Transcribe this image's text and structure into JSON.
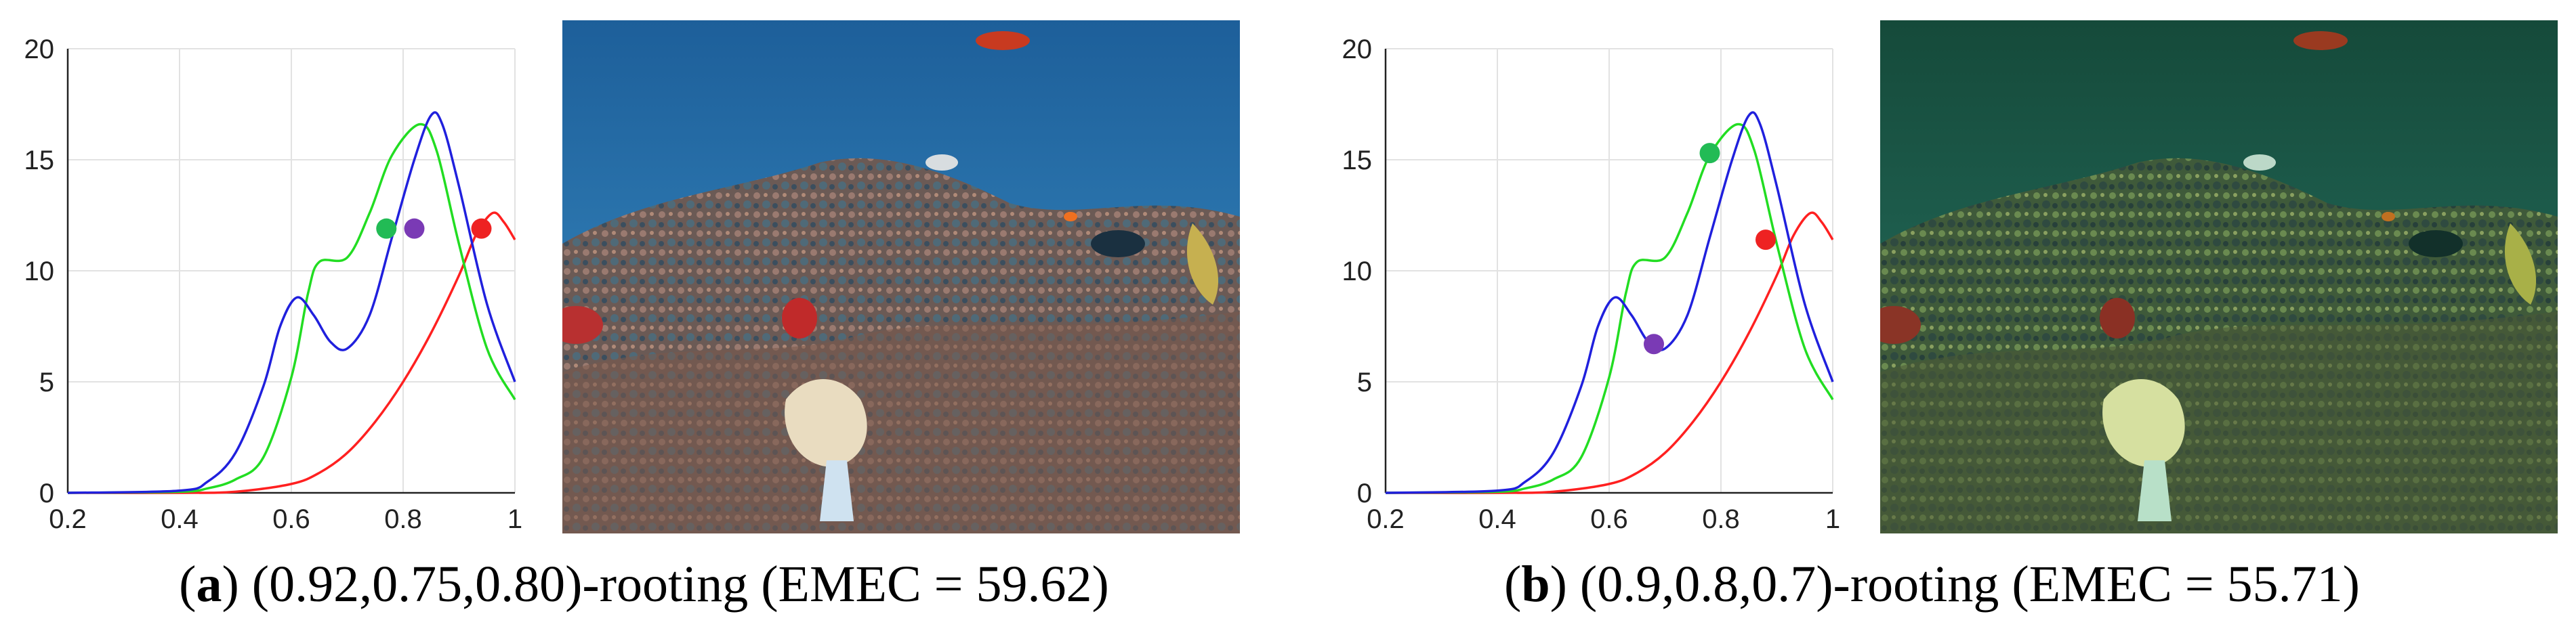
{
  "chart_data": [
    {
      "type": "line",
      "xlim": [
        0.2,
        1
      ],
      "ylim": [
        0,
        20
      ],
      "xticks": [
        "0.2",
        "0.4",
        "0.6",
        "0.8",
        "1"
      ],
      "yticks": [
        "0",
        "5",
        "10",
        "15",
        "20"
      ],
      "grid": true,
      "series": [
        {
          "color": "#ff2020",
          "points": [
            [
              0.2,
              0
            ],
            [
              0.4,
              0
            ],
            [
              0.5,
              0.05
            ],
            [
              0.6,
              0.4
            ],
            [
              0.65,
              0.9
            ],
            [
              0.7,
              1.8
            ],
            [
              0.75,
              3.2
            ],
            [
              0.8,
              5.0
            ],
            [
              0.85,
              7.2
            ],
            [
              0.9,
              9.8
            ],
            [
              0.93,
              11.6
            ],
            [
              0.96,
              12.6
            ],
            [
              0.98,
              12.2
            ],
            [
              1.0,
              11.4
            ]
          ]
        },
        {
          "color": "#22dd22",
          "points": [
            [
              0.2,
              0
            ],
            [
              0.4,
              0.05
            ],
            [
              0.45,
              0.2
            ],
            [
              0.5,
              0.6
            ],
            [
              0.55,
              1.6
            ],
            [
              0.6,
              5.2
            ],
            [
              0.63,
              9.0
            ],
            [
              0.65,
              10.4
            ],
            [
              0.7,
              10.6
            ],
            [
              0.74,
              12.6
            ],
            [
              0.78,
              15.2
            ],
            [
              0.83,
              16.6
            ],
            [
              0.86,
              15.4
            ],
            [
              0.9,
              11.2
            ],
            [
              0.95,
              6.5
            ],
            [
              1.0,
              4.2
            ]
          ]
        },
        {
          "color": "#2020dd",
          "points": [
            [
              0.2,
              0
            ],
            [
              0.4,
              0.1
            ],
            [
              0.45,
              0.5
            ],
            [
              0.5,
              1.8
            ],
            [
              0.55,
              4.8
            ],
            [
              0.58,
              7.5
            ],
            [
              0.61,
              8.8
            ],
            [
              0.64,
              8.0
            ],
            [
              0.67,
              6.8
            ],
            [
              0.7,
              6.5
            ],
            [
              0.74,
              8.0
            ],
            [
              0.78,
              11.5
            ],
            [
              0.82,
              15.0
            ],
            [
              0.85,
              17.0
            ],
            [
              0.87,
              16.6
            ],
            [
              0.9,
              13.8
            ],
            [
              0.95,
              8.5
            ],
            [
              1.0,
              5.0
            ]
          ]
        }
      ],
      "markers": [
        {
          "color": "#22bb55",
          "x": 0.77,
          "y": 11.9
        },
        {
          "color": "#7a3ab5",
          "x": 0.82,
          "y": 11.9
        },
        {
          "color": "#ee2222",
          "x": 0.94,
          "y": 11.9
        }
      ]
    },
    {
      "type": "line",
      "xlim": [
        0.2,
        1
      ],
      "ylim": [
        0,
        20
      ],
      "xticks": [
        "0.2",
        "0.4",
        "0.6",
        "0.8",
        "1"
      ],
      "yticks": [
        "0",
        "5",
        "10",
        "15",
        "20"
      ],
      "grid": true,
      "series": [
        {
          "color": "#ff2020",
          "points": [
            [
              0.2,
              0
            ],
            [
              0.4,
              0
            ],
            [
              0.5,
              0.05
            ],
            [
              0.6,
              0.4
            ],
            [
              0.65,
              0.9
            ],
            [
              0.7,
              1.8
            ],
            [
              0.75,
              3.2
            ],
            [
              0.8,
              5.0
            ],
            [
              0.85,
              7.2
            ],
            [
              0.9,
              9.8
            ],
            [
              0.93,
              11.6
            ],
            [
              0.96,
              12.6
            ],
            [
              0.98,
              12.2
            ],
            [
              1.0,
              11.4
            ]
          ]
        },
        {
          "color": "#22dd22",
          "points": [
            [
              0.2,
              0
            ],
            [
              0.4,
              0.05
            ],
            [
              0.45,
              0.2
            ],
            [
              0.5,
              0.6
            ],
            [
              0.55,
              1.6
            ],
            [
              0.6,
              5.2
            ],
            [
              0.63,
              9.0
            ],
            [
              0.65,
              10.4
            ],
            [
              0.7,
              10.6
            ],
            [
              0.74,
              12.6
            ],
            [
              0.78,
              15.2
            ],
            [
              0.83,
              16.6
            ],
            [
              0.86,
              15.4
            ],
            [
              0.9,
              11.2
            ],
            [
              0.95,
              6.5
            ],
            [
              1.0,
              4.2
            ]
          ]
        },
        {
          "color": "#2020dd",
          "points": [
            [
              0.2,
              0
            ],
            [
              0.4,
              0.1
            ],
            [
              0.45,
              0.5
            ],
            [
              0.5,
              1.8
            ],
            [
              0.55,
              4.8
            ],
            [
              0.58,
              7.5
            ],
            [
              0.61,
              8.8
            ],
            [
              0.64,
              8.0
            ],
            [
              0.67,
              6.8
            ],
            [
              0.7,
              6.5
            ],
            [
              0.74,
              8.0
            ],
            [
              0.78,
              11.5
            ],
            [
              0.82,
              15.0
            ],
            [
              0.85,
              17.0
            ],
            [
              0.87,
              16.6
            ],
            [
              0.9,
              13.8
            ],
            [
              0.95,
              8.5
            ],
            [
              1.0,
              5.0
            ]
          ]
        }
      ],
      "markers": [
        {
          "color": "#22bb55",
          "x": 0.78,
          "y": 15.3
        },
        {
          "color": "#7a3ab5",
          "x": 0.68,
          "y": 6.7
        },
        {
          "color": "#ee2222",
          "x": 0.88,
          "y": 11.4
        }
      ]
    }
  ],
  "captions": [
    {
      "label": "a",
      "text": ") (0.92,0.75,0.80)-rooting (EMEC = 59.62)"
    },
    {
      "label": "b",
      "text": ") (0.9,0.8,0.7)-rooting (EMEC = 55.71)"
    }
  ],
  "colors": {
    "photo_a_water": "#2a6aa0",
    "photo_b_water": "#1f5a46"
  }
}
